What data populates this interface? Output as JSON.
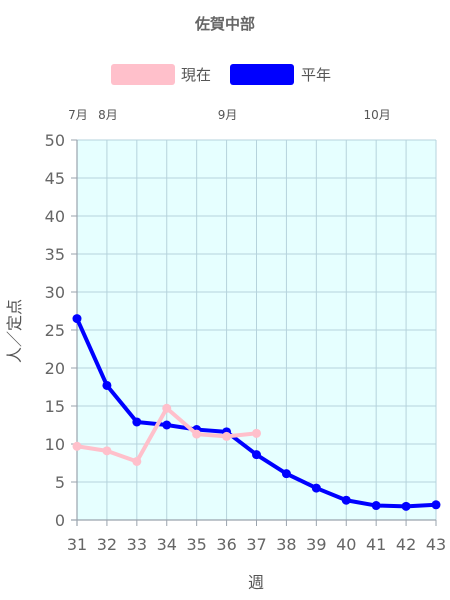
{
  "chart_data": {
    "type": "line",
    "title": "佐賀中部",
    "xlabel": "週",
    "ylabel": "人／定点",
    "x": [
      31,
      32,
      33,
      34,
      35,
      36,
      37,
      38,
      39,
      40,
      41,
      42,
      43
    ],
    "xlim": [
      31,
      43
    ],
    "ylim": [
      0,
      50
    ],
    "yticks": [
      0,
      5,
      10,
      15,
      20,
      25,
      30,
      35,
      40,
      45,
      50
    ],
    "month_labels": [
      {
        "label": "7月",
        "week": 31
      },
      {
        "label": "8月",
        "week": 32
      },
      {
        "label": "9月",
        "week": 36
      },
      {
        "label": "10月",
        "week": 41
      }
    ],
    "series": [
      {
        "name": "現在",
        "color": "#ffc0cb",
        "values": [
          9.7,
          9.1,
          7.7,
          14.7,
          11.3,
          11.0,
          11.4,
          null,
          null,
          null,
          null,
          null,
          null
        ]
      },
      {
        "name": "平年",
        "color": "#0000ff",
        "values": [
          26.5,
          17.7,
          12.9,
          12.5,
          11.9,
          11.6,
          8.6,
          6.1,
          4.2,
          2.6,
          1.9,
          1.8,
          2.0
        ]
      }
    ],
    "plot_background": "#e6ffff",
    "grid": true,
    "legend_position": "top"
  }
}
